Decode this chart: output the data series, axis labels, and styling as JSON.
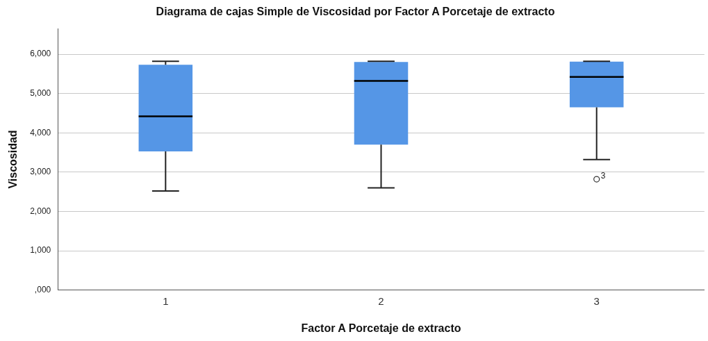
{
  "chart_data": {
    "type": "box",
    "title": "Diagrama de cajas Simple de Viscosidad por Factor A Porcetaje de extracto",
    "xlabel": "Factor A Porcetaje de extracto",
    "ylabel": "Viscosidad",
    "categories": [
      "1",
      "2",
      "3"
    ],
    "color": "#5596e6",
    "boxes": [
      {
        "low": 2520,
        "q1": 3530,
        "median": 4420,
        "q3": 5730,
        "high": 5820
      },
      {
        "low": 2600,
        "q1": 3700,
        "median": 5320,
        "q3": 5800,
        "high": 5820
      },
      {
        "low": 3320,
        "q1": 4650,
        "median": 5420,
        "q3": 5810,
        "high": 5820,
        "outliers": [
          2820
        ]
      }
    ],
    "annotations": [
      "3"
    ],
    "ylim": [
      0,
      6650
    ],
    "yticks": [
      {
        "value": 0,
        "label": ",000"
      },
      {
        "value": 1000,
        "label": "1,000"
      },
      {
        "value": 2000,
        "label": "2,000"
      },
      {
        "value": 3000,
        "label": "3,000"
      },
      {
        "value": 4000,
        "label": "4,000"
      },
      {
        "value": 5000,
        "label": "5,000"
      },
      {
        "value": 6000,
        "label": "6,000"
      }
    ],
    "grid": "y",
    "legend": false
  }
}
